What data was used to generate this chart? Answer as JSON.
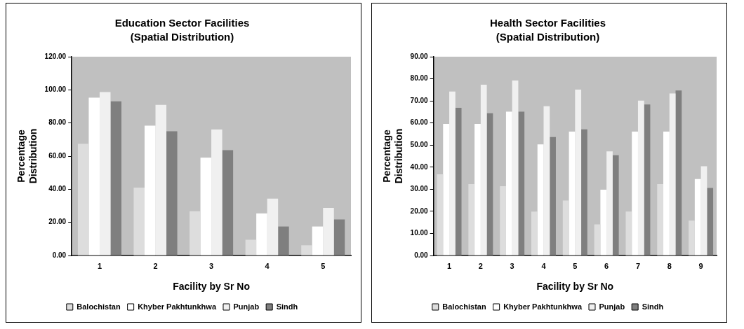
{
  "chart_data": [
    {
      "type": "bar",
      "title": "Education Sector Facilities",
      "subtitle": "(Spatial Distribution)",
      "xlabel": "Facility by Sr No",
      "ylabel": "Percentage Distribution",
      "categories": [
        "1",
        "2",
        "3",
        "4",
        "5"
      ],
      "ylim": [
        0,
        120
      ],
      "yticks": [
        {
          "value": 0,
          "label": "0.00"
        },
        {
          "value": 20,
          "label": "20.00"
        },
        {
          "value": 40,
          "label": "40.00"
        },
        {
          "value": 60,
          "label": "60.00"
        },
        {
          "value": 80,
          "label": "80.00"
        },
        {
          "value": 100,
          "label": "100.00"
        },
        {
          "value": 120,
          "label": "120.00"
        }
      ],
      "grid": false,
      "legend": "bottom",
      "series": [
        {
          "name": "Balochistan",
          "color": "#dddddd",
          "values": [
            67.4,
            41,
            26.7,
            9.5,
            6.2
          ]
        },
        {
          "name": "Khyber Pakhtunkhwa",
          "color": "#ffffff",
          "values": [
            95.3,
            78.4,
            59.1,
            25.4,
            17.5
          ]
        },
        {
          "name": "Punjab",
          "color": "#f0f0f0",
          "values": [
            98.7,
            90.9,
            76.1,
            34.3,
            28.7
          ]
        },
        {
          "name": "Sindh",
          "color": "#7f7f7f",
          "values": [
            93.1,
            75,
            63.6,
            17.5,
            21.8
          ]
        }
      ]
    },
    {
      "type": "bar",
      "title": "Health Sector Facilities",
      "subtitle": "(Spatial Distribution)",
      "xlabel": "Facility by Sr No",
      "ylabel": "Percentage Distribution",
      "categories": [
        "1",
        "2",
        "3",
        "4",
        "5",
        "6",
        "7",
        "8",
        "9"
      ],
      "ylim": [
        0,
        90
      ],
      "yticks": [
        {
          "value": 0,
          "label": "0.00"
        },
        {
          "value": 10,
          "label": "10.00"
        },
        {
          "value": 20,
          "label": "20.00"
        },
        {
          "value": 30,
          "label": "30.00"
        },
        {
          "value": 40,
          "label": "40.00"
        },
        {
          "value": 50,
          "label": "50.00"
        },
        {
          "value": 60,
          "label": "60.00"
        },
        {
          "value": 70,
          "label": "70.00"
        },
        {
          "value": 80,
          "label": "80.00"
        },
        {
          "value": 90,
          "label": "90.00"
        }
      ],
      "grid": false,
      "legend": "bottom",
      "series": [
        {
          "name": "Balochistan",
          "color": "#dddddd",
          "values": [
            36.8,
            32.3,
            31.4,
            19.9,
            24.9,
            14.1,
            19.9,
            32.3,
            15.8
          ]
        },
        {
          "name": "Khyber Pakhtunkhwa",
          "color": "#ffffff",
          "values": [
            59.6,
            59.6,
            65.1,
            50.3,
            56.1,
            29.8,
            56.1,
            56.1,
            34.6
          ]
        },
        {
          "name": "Punjab",
          "color": "#f0f0f0",
          "values": [
            74.2,
            77.3,
            79.2,
            67.6,
            75.1,
            47.1,
            70.1,
            73.4,
            40.4
          ]
        },
        {
          "name": "Sindh",
          "color": "#7f7f7f",
          "values": [
            66.9,
            64.4,
            65.1,
            53.6,
            57.1,
            45.4,
            68.4,
            74.7,
            30.6
          ]
        }
      ]
    }
  ]
}
